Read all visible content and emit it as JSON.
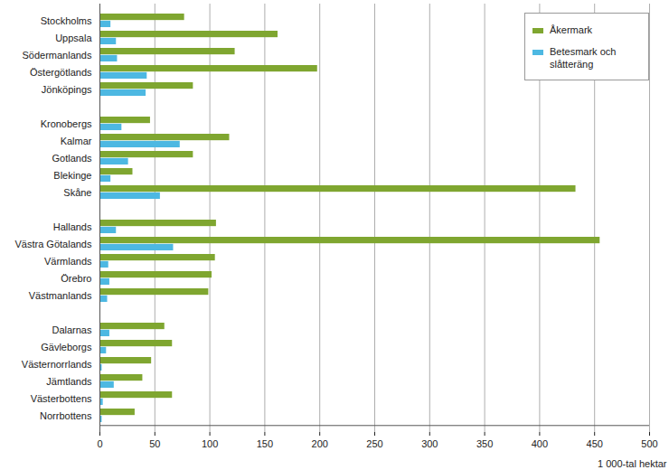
{
  "chart_data": {
    "type": "bar",
    "orientation": "horizontal",
    "x_label": "1 000-tal hektar",
    "categories": [
      "Stockholms",
      "Uppsala",
      "Södermanlands",
      "Östergötlands",
      "Jönköpings",
      null,
      "Kronobergs",
      "Kalmar",
      "Gotlands",
      "Blekinge",
      "Skåne",
      null,
      "Hallands",
      "Västra Götalands",
      "Värmlands",
      "Örebro",
      "Västmanlands",
      null,
      "Dalarnas",
      "Gävleborgs",
      "Västernorrlands",
      "Jämtlands",
      "Västerbottens",
      "Norrbottens"
    ],
    "series": [
      {
        "name": "Åkermark",
        "color": "#7fa630",
        "values": [
          77,
          162,
          123,
          198,
          85,
          null,
          46,
          118,
          85,
          30,
          433,
          null,
          106,
          455,
          105,
          102,
          99,
          null,
          59,
          66,
          47,
          39,
          66,
          32
        ]
      },
      {
        "name": "Betesmark och slåtteräng",
        "color": "#4db8e2",
        "values": [
          10,
          15,
          16,
          43,
          42,
          null,
          20,
          73,
          26,
          10,
          55,
          null,
          15,
          67,
          8,
          9,
          7,
          null,
          9,
          6,
          2,
          13,
          3,
          2
        ]
      }
    ],
    "xlim": [
      0,
      500
    ],
    "xticks": [
      0,
      50,
      100,
      150,
      200,
      250,
      300,
      350,
      400,
      450,
      500
    ],
    "grid": true,
    "legend": "top-right"
  }
}
